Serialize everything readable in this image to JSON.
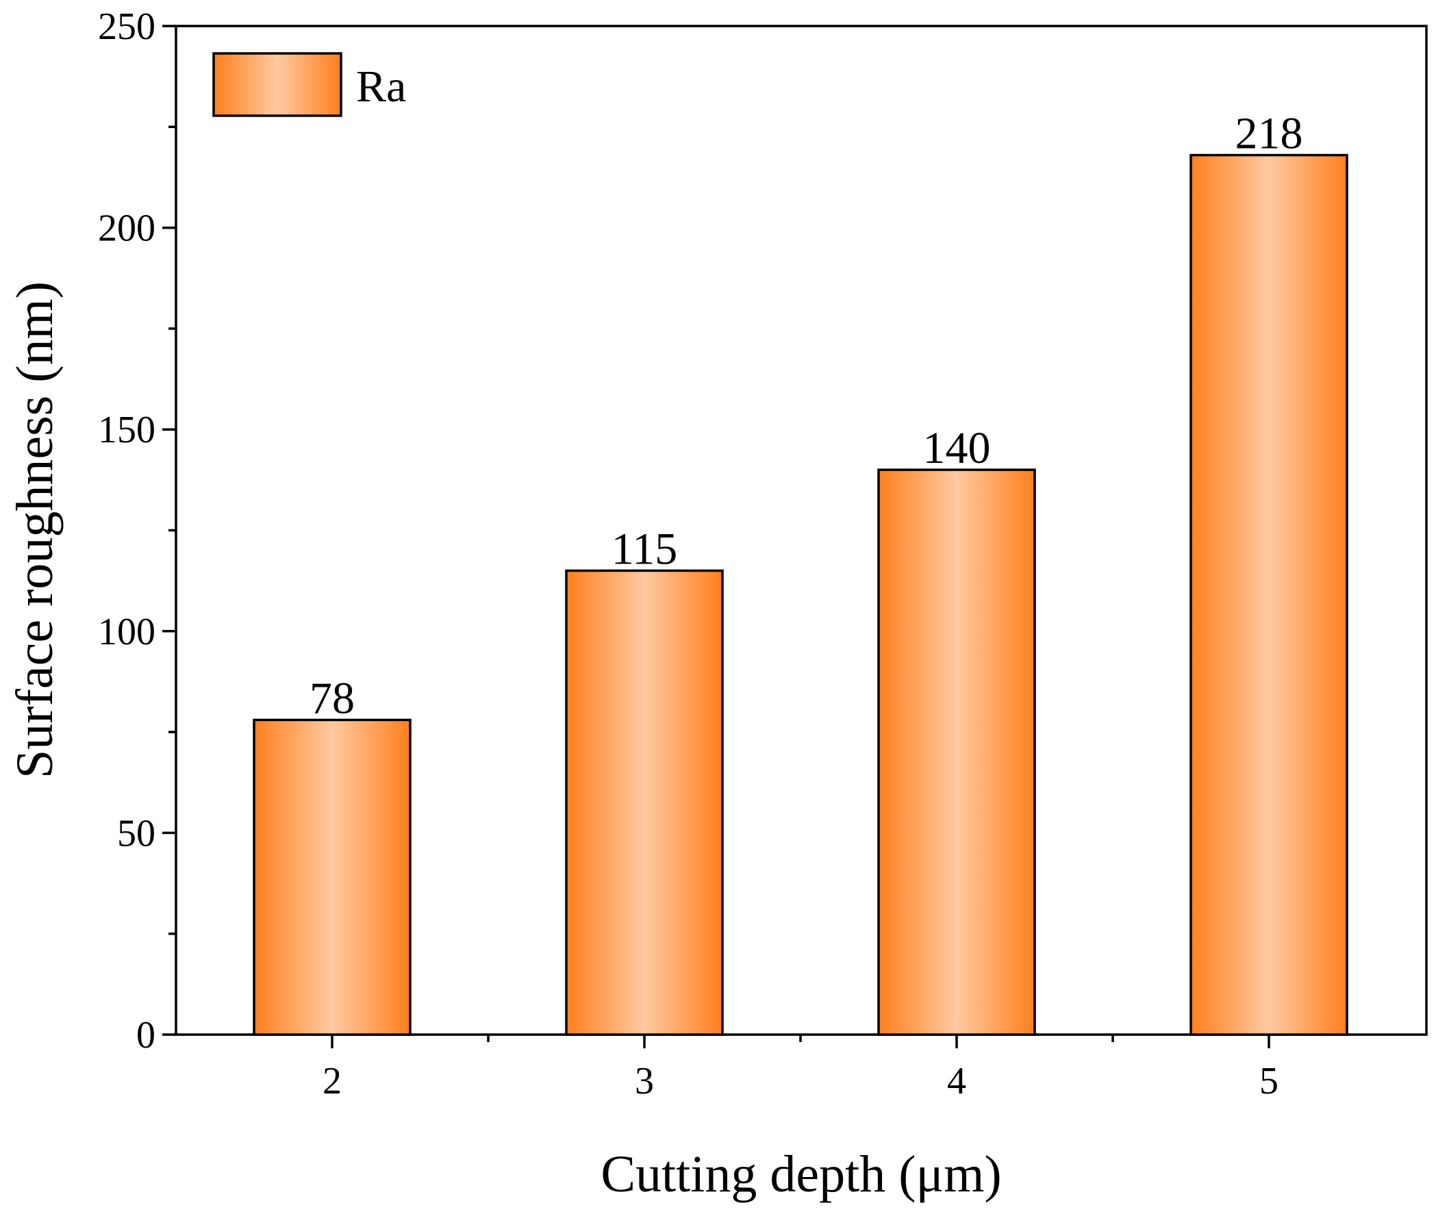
{
  "chart_data": {
    "type": "bar",
    "title": "",
    "xlabel": "Cutting depth (μm)",
    "ylabel": "Surface roughness (nm)",
    "categories": [
      "2",
      "3",
      "4",
      "5"
    ],
    "series": [
      {
        "name": "Ra",
        "values": [
          78,
          115,
          140,
          218
        ]
      }
    ],
    "data_labels": [
      "78",
      "115",
      "140",
      "218"
    ],
    "ylim": [
      0,
      250
    ],
    "yticks": [
      0,
      50,
      100,
      150,
      200,
      250
    ],
    "ytick_labels": [
      "0",
      "50",
      "100",
      "150",
      "200",
      "250"
    ],
    "y_minor_step": 25,
    "grid": false,
    "legend_position": "top-left",
    "colors": {
      "bar_edge": "#ff7f1e",
      "bar_center": "#ffc9a0",
      "outline": "#000000"
    }
  }
}
